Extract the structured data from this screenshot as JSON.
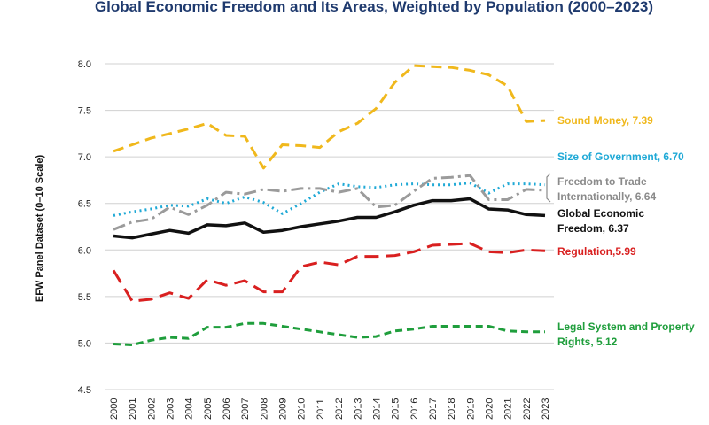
{
  "chart_data": {
    "type": "line",
    "title": "Global Economic Freedom and Its Areas, Weighted by Population (2000–2023)",
    "ylabel": "EFW Panel Dataset (0–10 Scale)",
    "ylim": [
      4.5,
      8.0
    ],
    "yticks": [
      "4.5",
      "5.0",
      "5.5",
      "6.0",
      "6.5",
      "7.0",
      "7.5",
      "8.0"
    ],
    "grid": true,
    "x": [
      "2000",
      "2001",
      "2002",
      "2003",
      "2004",
      "2005",
      "2006",
      "2007",
      "2008",
      "2009",
      "2010",
      "2011",
      "2012",
      "2013",
      "2014",
      "2015",
      "2016",
      "2017",
      "2018",
      "2019",
      "2020",
      "2021",
      "2022",
      "2023"
    ],
    "series": [
      {
        "name": "Sound Money",
        "label": "Sound Money, 7.39",
        "label_lines": [
          "Sound Money, 7.39"
        ],
        "color": "#f0b81c",
        "dash": "12 7",
        "width": 3,
        "values": [
          7.06,
          7.13,
          7.2,
          7.25,
          7.3,
          7.36,
          7.23,
          7.22,
          6.88,
          7.13,
          7.12,
          7.1,
          7.27,
          7.36,
          7.52,
          7.8,
          7.98,
          7.97,
          7.96,
          7.93,
          7.88,
          7.76,
          7.38,
          7.39
        ]
      },
      {
        "name": "Size of Government",
        "label": "Size of Government, 6.70",
        "label_lines": [
          "Size of Government, 6.70"
        ],
        "color": "#1fa9d6",
        "dash": "2 4",
        "width": 3,
        "values": [
          6.37,
          6.41,
          6.44,
          6.48,
          6.47,
          6.55,
          6.5,
          6.57,
          6.51,
          6.39,
          6.5,
          6.62,
          6.71,
          6.68,
          6.67,
          6.7,
          6.71,
          6.7,
          6.7,
          6.72,
          6.61,
          6.71,
          6.71,
          6.7
        ]
      },
      {
        "name": "Freedom to Trade Internationally",
        "label": "Freedom to Trade Internationally, 6.64",
        "label_lines": [
          "Freedom to Trade",
          "Internationally, 6.64"
        ],
        "color": "#9b9b9b",
        "dash": "14 5 3 5",
        "width": 3,
        "values": [
          6.22,
          6.3,
          6.33,
          6.46,
          6.38,
          6.48,
          6.62,
          6.6,
          6.65,
          6.63,
          6.66,
          6.66,
          6.62,
          6.66,
          6.46,
          6.48,
          6.63,
          6.77,
          6.78,
          6.8,
          6.54,
          6.54,
          6.65,
          6.64
        ]
      },
      {
        "name": "Global Economic Freedom",
        "label": "Global Economic Freedom, 6.37",
        "label_lines": [
          "Global Economic",
          "Freedom, 6.37"
        ],
        "color": "#111111",
        "dash": "",
        "width": 3.5,
        "values": [
          6.15,
          6.13,
          6.17,
          6.21,
          6.18,
          6.27,
          6.26,
          6.29,
          6.19,
          6.21,
          6.25,
          6.28,
          6.31,
          6.35,
          6.35,
          6.41,
          6.48,
          6.53,
          6.53,
          6.55,
          6.44,
          6.43,
          6.38,
          6.37
        ]
      },
      {
        "name": "Regulation",
        "label": "Regulation,5.99",
        "label_lines": [
          "Regulation,5.99"
        ],
        "color": "#d92020",
        "dash": "16 8",
        "width": 3,
        "values": [
          5.78,
          5.45,
          5.47,
          5.54,
          5.48,
          5.68,
          5.62,
          5.67,
          5.55,
          5.55,
          5.82,
          5.87,
          5.84,
          5.93,
          5.93,
          5.94,
          5.98,
          6.05,
          6.06,
          6.07,
          5.98,
          5.97,
          6.0,
          5.99
        ]
      },
      {
        "name": "Legal System and Property Rights",
        "label": "Legal System and Property Rights, 5.12",
        "label_lines": [
          "Legal System and Property",
          "Rights, 5.12"
        ],
        "color": "#1f9e3c",
        "dash": "8 5",
        "width": 3,
        "values": [
          4.99,
          4.98,
          5.03,
          5.06,
          5.05,
          5.17,
          5.17,
          5.21,
          5.21,
          5.18,
          5.15,
          5.12,
          5.09,
          5.06,
          5.07,
          5.13,
          5.15,
          5.18,
          5.18,
          5.18,
          5.18,
          5.13,
          5.12,
          5.12
        ]
      }
    ]
  }
}
